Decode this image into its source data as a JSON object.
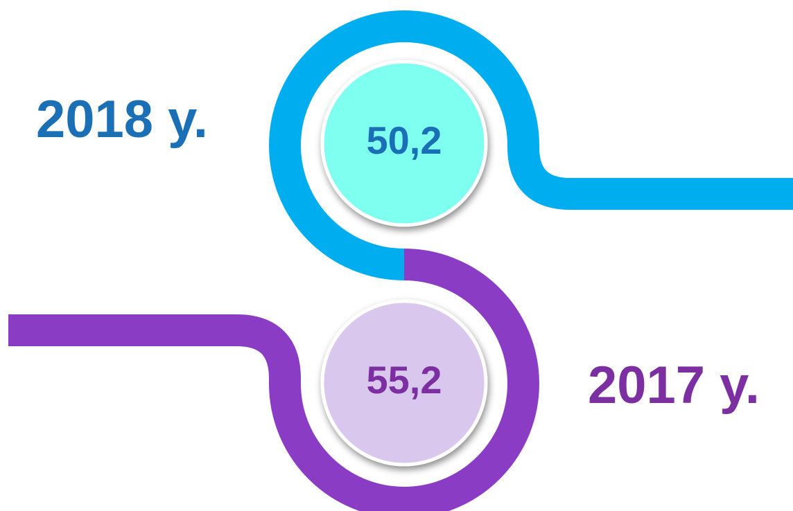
{
  "items": [
    {
      "year": "2018 y.",
      "value": "50,2"
    },
    {
      "year": "2017 y.",
      "value": "55,2"
    }
  ]
}
